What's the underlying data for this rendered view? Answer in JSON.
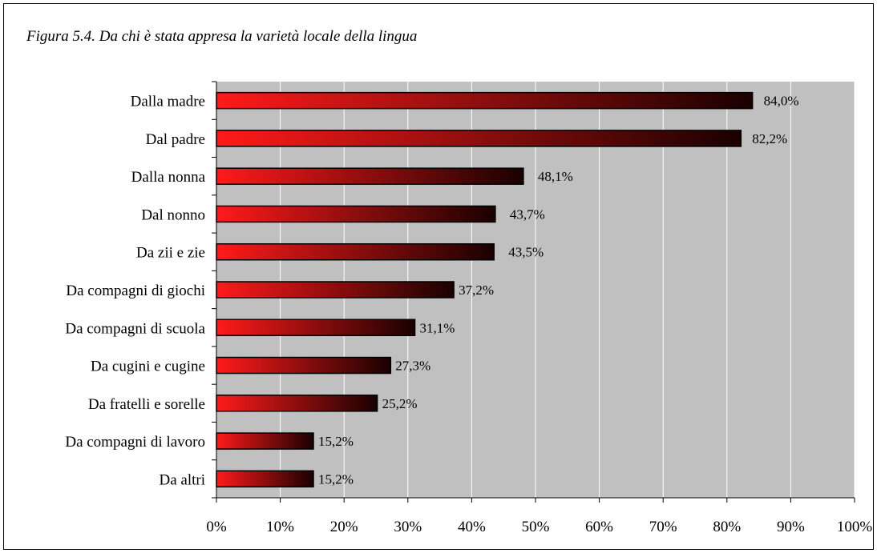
{
  "chart_data": {
    "type": "bar",
    "orientation": "horizontal",
    "title": "Figura 5.4. Da chi è stata appresa la varietà locale della lingua",
    "categories": [
      "Dalla madre",
      "Dal padre",
      "Dalla nonna",
      "Dal nonno",
      "Da zii e zie",
      "Da compagni di giochi",
      "Da compagni di scuola",
      "Da cugini e cugine",
      "Da fratelli e sorelle",
      "Da compagni di lavoro",
      "Da altri"
    ],
    "values": [
      84.0,
      82.2,
      48.1,
      43.7,
      43.5,
      37.2,
      31.1,
      27.3,
      25.2,
      15.2,
      15.2
    ],
    "value_labels": [
      "84,0%",
      "82,2%",
      "48,1%",
      "43,7%",
      "43,5%",
      "37,2%",
      "31,1%",
      "27,3%",
      "25,2%",
      "15,2%",
      "15,2%"
    ],
    "xlim": [
      0,
      100
    ],
    "x_ticks": [
      "0%",
      "10%",
      "20%",
      "30%",
      "40%",
      "50%",
      "60%",
      "70%",
      "80%",
      "90%",
      "100%"
    ],
    "grid": true,
    "colors": {
      "plot_bg": "#c0c0c0",
      "grid": "#ffffff",
      "bar_start": "#ff1a1a",
      "bar_end": "#1a0000"
    }
  }
}
